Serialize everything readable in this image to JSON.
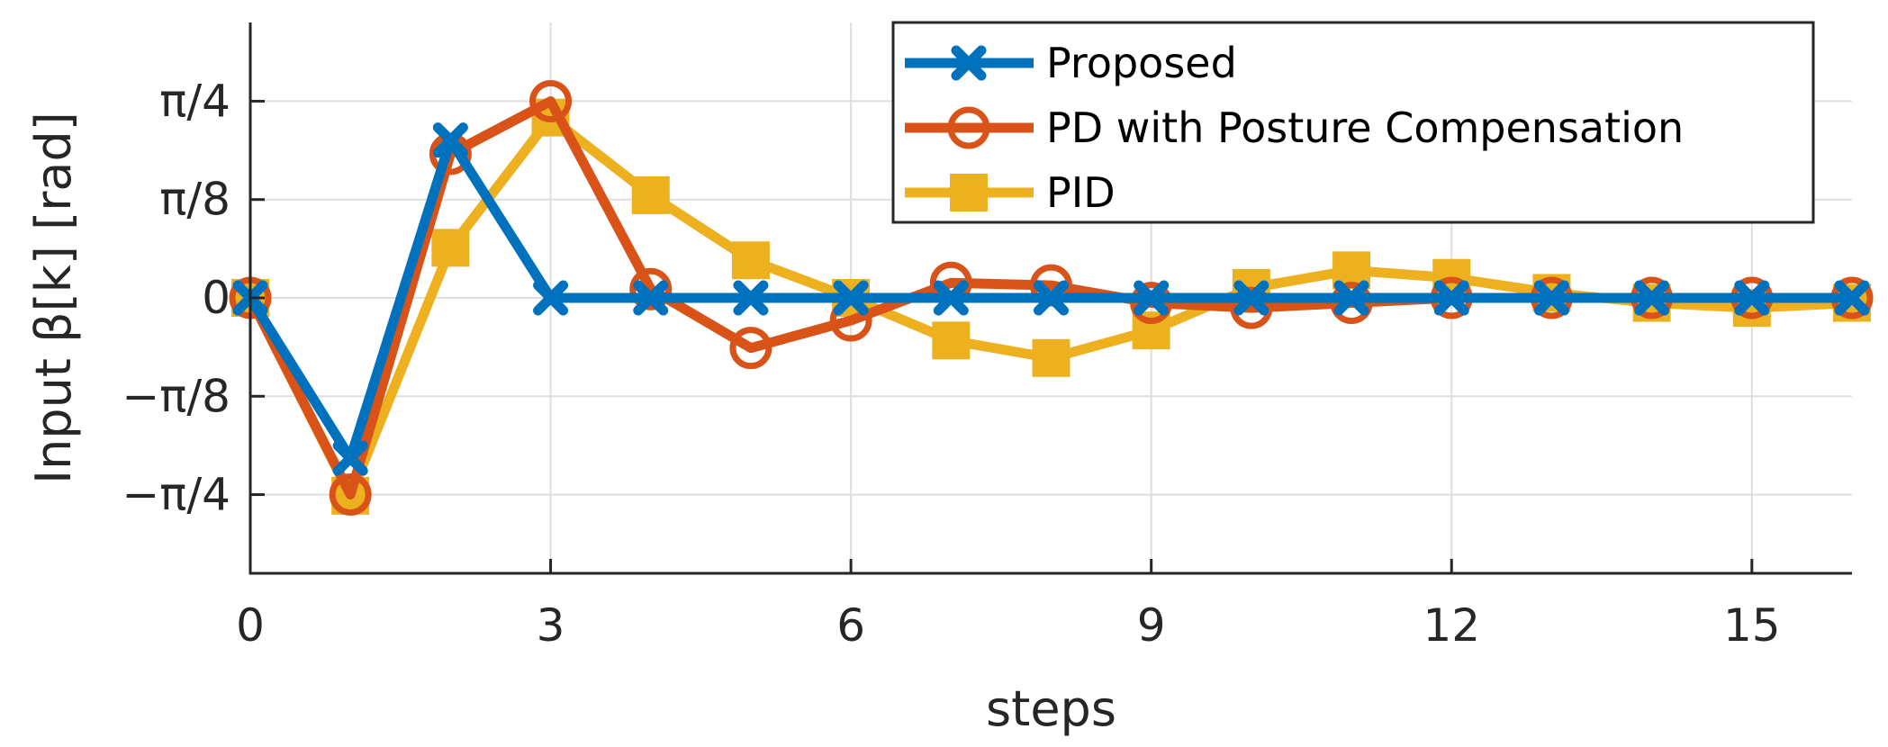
{
  "chart_data": {
    "type": "line",
    "xlabel": "steps",
    "ylabel": "Input β[k] [rad]",
    "xlim": [
      0,
      16
    ],
    "ylim": [
      -1.0996,
      1.0996
    ],
    "xticks": [
      0,
      3,
      6,
      9,
      12,
      15
    ],
    "xtick_labels": [
      "0",
      "3",
      "6",
      "9",
      "12",
      "15"
    ],
    "yticks": [
      -0.7854,
      -0.3927,
      0,
      0.3927,
      0.7854
    ],
    "ytick_labels": [
      "−π/4",
      "−π/8",
      "0",
      "π/8",
      "π/4"
    ],
    "grid": true,
    "legend_position": "top-right",
    "x": [
      0,
      1,
      2,
      3,
      4,
      5,
      6,
      7,
      8,
      9,
      10,
      11,
      12,
      13,
      14,
      15,
      16
    ],
    "series": [
      {
        "name": "Proposed",
        "color": "#0072BD",
        "marker": "x",
        "values": [
          0,
          -0.64,
          0.63,
          0,
          0,
          0,
          0,
          0,
          0,
          0,
          0,
          0,
          0,
          0,
          0,
          0,
          0
        ]
      },
      {
        "name": "PD with Posture Compensation",
        "color": "#D95319",
        "marker": "circle",
        "values": [
          0,
          -0.785,
          0.575,
          0.785,
          0.035,
          -0.2,
          -0.09,
          0.06,
          0.05,
          -0.02,
          -0.04,
          -0.02,
          0.0,
          0.0,
          0.0,
          0.0,
          0.0
        ]
      },
      {
        "name": "PID",
        "color": "#EDB120",
        "marker": "square",
        "values": [
          0,
          -0.79,
          0.2,
          0.72,
          0.41,
          0.15,
          0.0,
          -0.17,
          -0.24,
          -0.13,
          0.04,
          0.11,
          0.08,
          0.02,
          -0.02,
          -0.04,
          -0.02
        ]
      }
    ]
  }
}
